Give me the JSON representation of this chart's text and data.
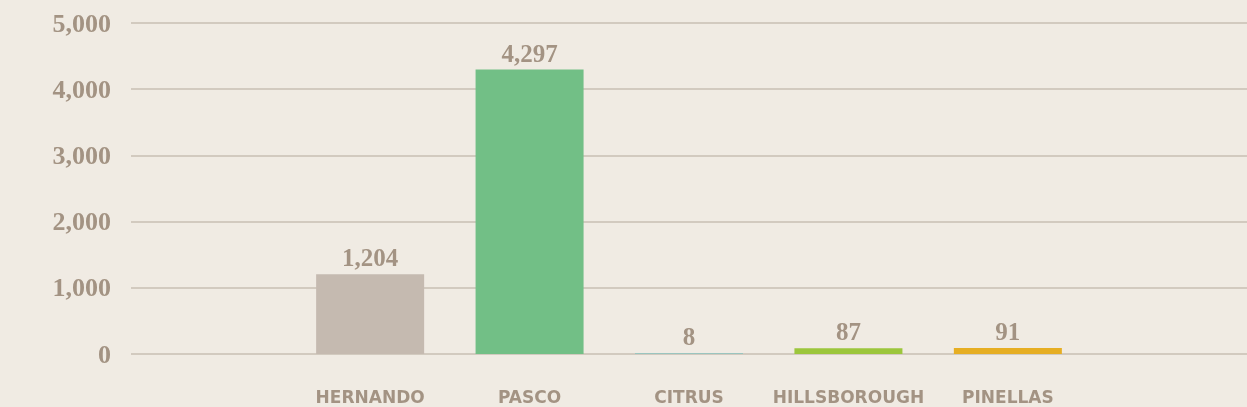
{
  "chart_data": {
    "type": "bar",
    "categories": [
      null,
      "HERNANDO",
      "PASCO",
      "CITRUS",
      "HILLSBOROUGH",
      "PINELLAS",
      null
    ],
    "values": [
      null,
      1204,
      4297,
      8,
      87,
      91,
      null
    ],
    "colors": [
      null,
      "#c5bab0",
      "#72bf86",
      "#63bfc0",
      "#9cc63c",
      "#e6ae23",
      null
    ],
    "value_labels": [
      null,
      "1,204",
      "4,297",
      "8",
      "87",
      "91",
      null
    ],
    "ylim": [
      0,
      5000
    ],
    "yticks": [
      {
        "value": 0,
        "label": "0"
      },
      {
        "value": 1000,
        "label": "1,000"
      },
      {
        "value": 2000,
        "label": "2,000"
      },
      {
        "value": 3000,
        "label": "3,000"
      },
      {
        "value": 4000,
        "label": "4,000"
      },
      {
        "value": 5000,
        "label": "5,000"
      }
    ],
    "grid": "y"
  }
}
